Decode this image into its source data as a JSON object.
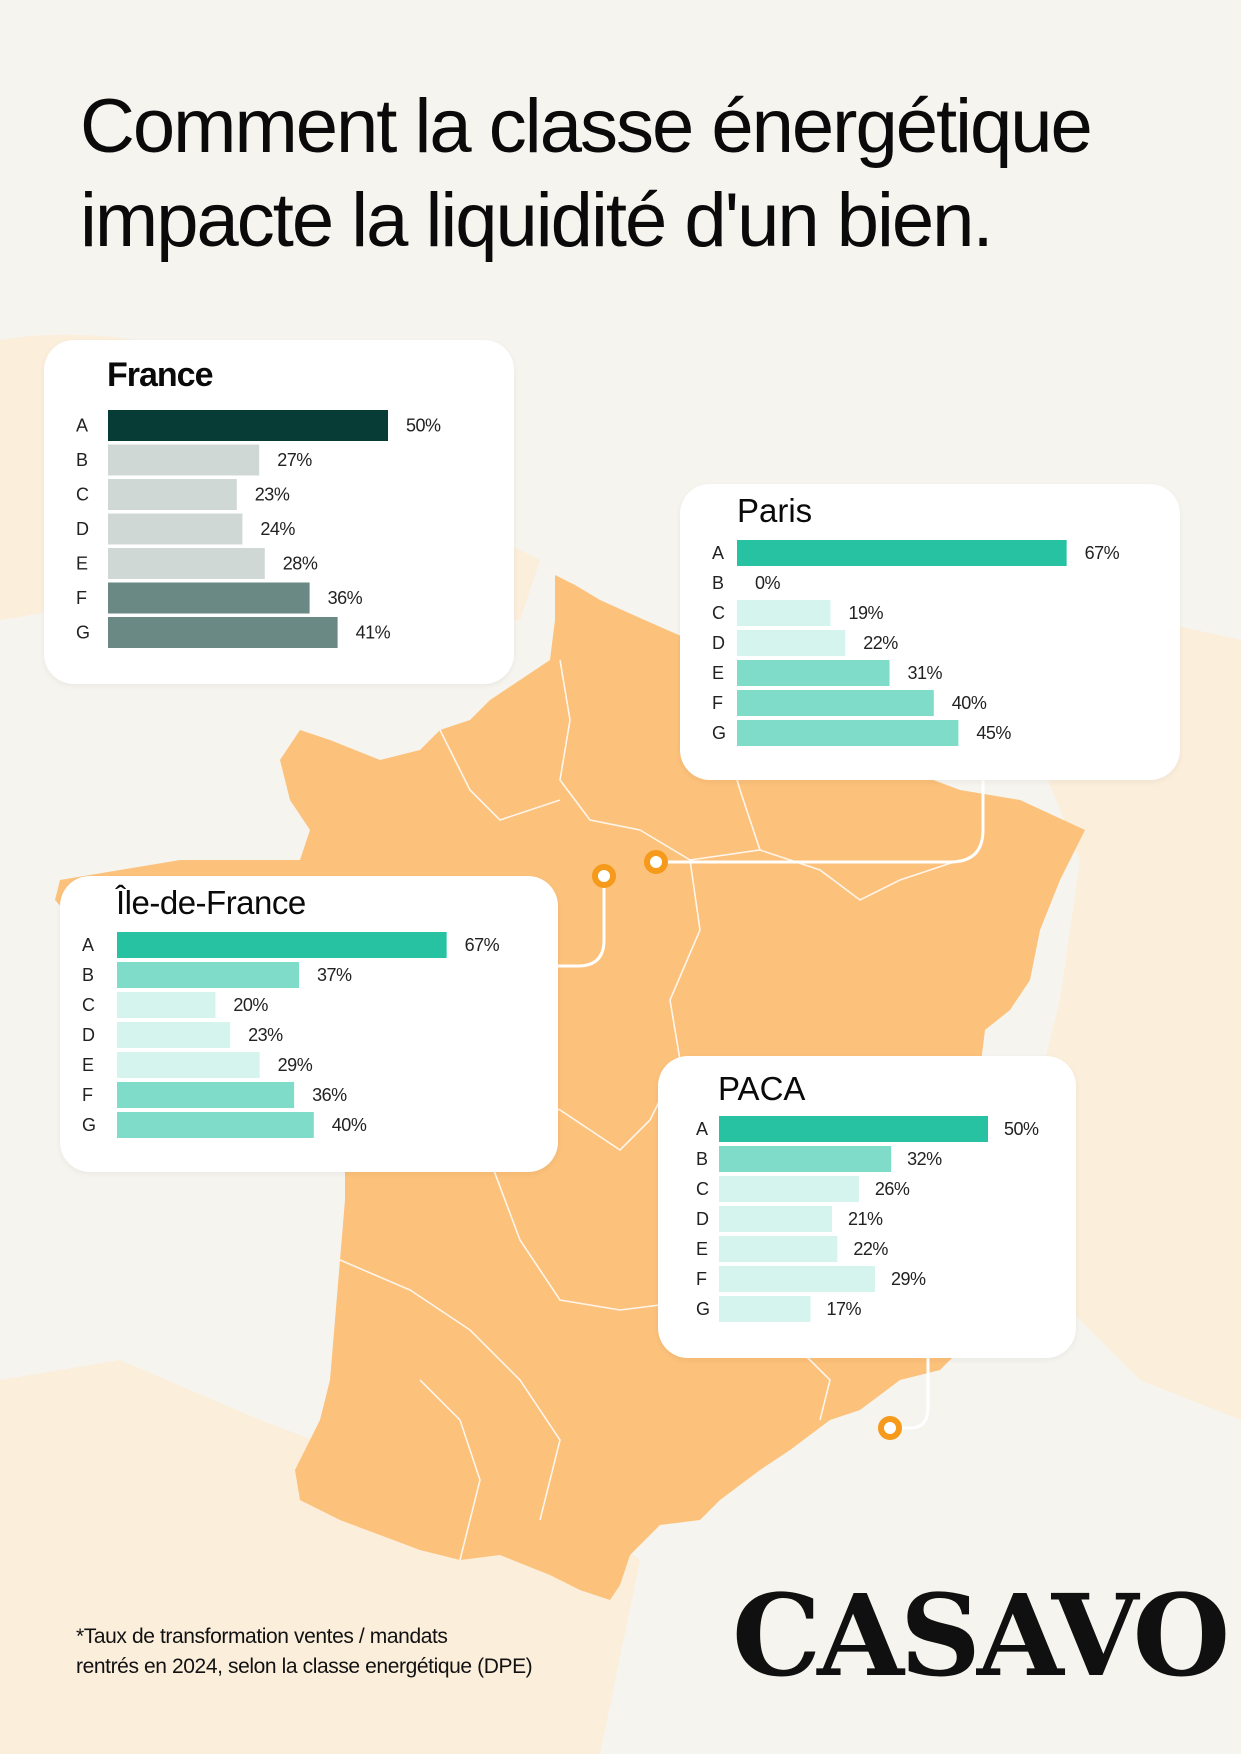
{
  "title_line1": "Comment la classe énergétique",
  "title_line2": "impacte la liquidité d'un bien.",
  "footnote_line1": "*Taux de transformation ventes / mandats",
  "footnote_line2": "rentrés en 2024, selon la classe energétique (DPE)",
  "logo_text": "CASAVO",
  "colors": {
    "background": "#f6f4ee",
    "map": "#fcc17a",
    "marker": "#f59a1b",
    "france_a": "#063b36",
    "france_grey": "#d0d8d6",
    "france_dark": "#6a8984",
    "teal_a": "#26c2a2",
    "teal_mid": "#7fdcc8",
    "teal_light": "#d5f4ee"
  },
  "chart_data": [
    {
      "type": "bar",
      "title": "France",
      "categories": [
        "A",
        "B",
        "C",
        "D",
        "E",
        "F",
        "G"
      ],
      "values": [
        50,
        27,
        23,
        24,
        28,
        36,
        41
      ],
      "labels": [
        "50%",
        "27%",
        "23%",
        "24%",
        "28%",
        "36%",
        "41%"
      ],
      "bar_colors": [
        "#063b36",
        "#d0d8d6",
        "#d0d8d6",
        "#d0d8d6",
        "#d0d8d6",
        "#6a8984",
        "#6a8984"
      ]
    },
    {
      "type": "bar",
      "title": "Paris",
      "categories": [
        "A",
        "B",
        "C",
        "D",
        "E",
        "F",
        "G"
      ],
      "values": [
        67,
        0,
        19,
        22,
        31,
        40,
        45
      ],
      "labels": [
        "67%",
        "0%",
        "19%",
        "22%",
        "31%",
        "40%",
        "45%"
      ],
      "bar_colors": [
        "#26c2a2",
        "#7fdcc8",
        "#d5f4ee",
        "#d5f4ee",
        "#7fdcc8",
        "#7fdcc8",
        "#7fdcc8"
      ]
    },
    {
      "type": "bar",
      "title": "Île-de-France",
      "categories": [
        "A",
        "B",
        "C",
        "D",
        "E",
        "F",
        "G"
      ],
      "values": [
        67,
        37,
        20,
        23,
        29,
        36,
        40
      ],
      "labels": [
        "67%",
        "37%",
        "20%",
        "23%",
        "29%",
        "36%",
        "40%"
      ],
      "bar_colors": [
        "#26c2a2",
        "#7fdcc8",
        "#d5f4ee",
        "#d5f4ee",
        "#d5f4ee",
        "#7fdcc8",
        "#7fdcc8"
      ]
    },
    {
      "type": "bar",
      "title": "PACA",
      "categories": [
        "A",
        "B",
        "C",
        "D",
        "E",
        "F",
        "G"
      ],
      "values": [
        50,
        32,
        26,
        21,
        22,
        29,
        17
      ],
      "labels": [
        "50%",
        "32%",
        "26%",
        "21%",
        "22%",
        "29%",
        "17%"
      ],
      "bar_colors": [
        "#26c2a2",
        "#7fdcc8",
        "#d5f4ee",
        "#d5f4ee",
        "#d5f4ee",
        "#d5f4ee",
        "#d5f4ee"
      ]
    }
  ]
}
